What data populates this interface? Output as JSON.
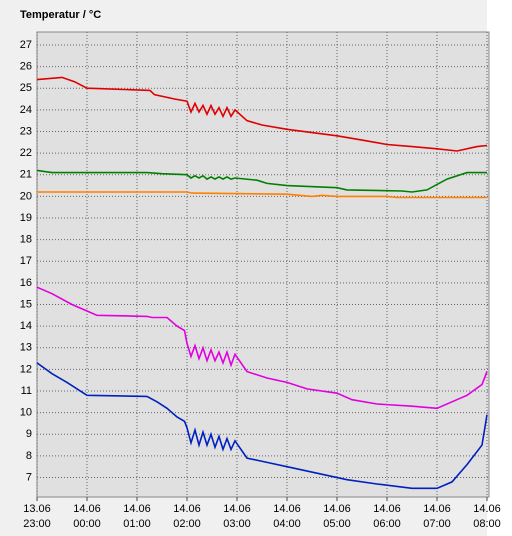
{
  "chart_data": {
    "type": "line",
    "title": "Temperatur / °C",
    "xlim": [
      0,
      9
    ],
    "ylim": [
      6.1,
      27.6
    ],
    "grid": true,
    "yticks": [
      7,
      8,
      9,
      10,
      11,
      12,
      13,
      14,
      15,
      16,
      17,
      18,
      19,
      20,
      21,
      22,
      23,
      24,
      25,
      26,
      27
    ],
    "xticks": [
      {
        "value": 0,
        "label": "13.06\n23:00"
      },
      {
        "value": 1,
        "label": "14.06\n00:00"
      },
      {
        "value": 2,
        "label": "14.06\n01:00"
      },
      {
        "value": 3,
        "label": "14.06\n02:00"
      },
      {
        "value": 4,
        "label": "14.06\n03:00"
      },
      {
        "value": 5,
        "label": "14.06\n04:00"
      },
      {
        "value": 6,
        "label": "14.06\n05:00"
      },
      {
        "value": 7,
        "label": "14.06\n06:00"
      },
      {
        "value": 8,
        "label": "14.06\n07:00"
      },
      {
        "value": 9,
        "label": "14.06\n08:00"
      }
    ],
    "series": [
      {
        "color": "#e00000",
        "x": [
          0,
          0.5,
          0.75,
          1,
          2.26,
          2.35,
          2.75,
          3.0,
          3.08,
          3.16,
          3.24,
          3.32,
          3.4,
          3.48,
          3.56,
          3.64,
          3.72,
          3.8,
          3.88,
          3.96,
          4.2,
          4.5,
          5,
          5.5,
          6,
          6.5,
          7,
          7.5,
          8,
          8.4,
          8.8,
          9
        ],
        "values": [
          25.4,
          25.5,
          25.3,
          25.0,
          24.9,
          24.7,
          24.5,
          24.4,
          23.9,
          24.3,
          23.9,
          24.2,
          23.8,
          24.2,
          23.8,
          24.1,
          23.7,
          24.1,
          23.7,
          24.0,
          23.5,
          23.3,
          23.1,
          22.95,
          22.8,
          22.6,
          22.4,
          22.3,
          22.2,
          22.1,
          22.3,
          22.35
        ]
      },
      {
        "color": "#008000",
        "x": [
          0,
          0.3,
          2.2,
          2.5,
          3.0,
          3.08,
          3.16,
          3.24,
          3.32,
          3.4,
          3.48,
          3.56,
          3.64,
          3.72,
          3.8,
          3.88,
          3.96,
          4.4,
          4.6,
          5,
          6,
          6.2,
          7.3,
          7.5,
          7.8,
          8.2,
          8.6,
          9
        ],
        "values": [
          21.2,
          21.1,
          21.1,
          21.05,
          21.0,
          20.85,
          20.95,
          20.85,
          20.95,
          20.8,
          20.9,
          20.8,
          20.9,
          20.8,
          20.9,
          20.8,
          20.85,
          20.75,
          20.6,
          20.5,
          20.4,
          20.3,
          20.25,
          20.2,
          20.3,
          20.8,
          21.1,
          21.1
        ]
      },
      {
        "color": "#ff8000",
        "x": [
          0,
          3,
          3.1,
          5,
          5.5,
          5.7,
          6,
          7,
          7.2,
          9
        ],
        "values": [
          20.2,
          20.2,
          20.15,
          20.1,
          20.0,
          20.05,
          20.0,
          20.0,
          19.95,
          19.95
        ]
      },
      {
        "color": "#e000e0",
        "x": [
          0,
          0.3,
          0.7,
          1,
          1.2,
          2.2,
          2.3,
          2.6,
          2.8,
          2.95,
          3.0,
          3.08,
          3.16,
          3.24,
          3.32,
          3.4,
          3.48,
          3.56,
          3.64,
          3.72,
          3.8,
          3.88,
          3.96,
          4.2,
          4.6,
          5,
          5.4,
          6,
          6.3,
          6.8,
          7.5,
          8,
          8.3,
          8.6,
          8.9,
          9
        ],
        "values": [
          15.8,
          15.5,
          15.0,
          14.7,
          14.5,
          14.45,
          14.4,
          14.4,
          14.0,
          13.8,
          13.2,
          12.6,
          13.1,
          12.5,
          13.0,
          12.4,
          12.9,
          12.4,
          12.8,
          12.3,
          12.8,
          12.2,
          12.7,
          11.9,
          11.6,
          11.4,
          11.1,
          10.9,
          10.6,
          10.4,
          10.3,
          10.2,
          10.5,
          10.8,
          11.3,
          11.9
        ]
      },
      {
        "color": "#0020c0",
        "x": [
          0,
          0.3,
          0.6,
          1,
          2.2,
          2.4,
          2.6,
          2.8,
          2.95,
          3.0,
          3.08,
          3.16,
          3.24,
          3.32,
          3.4,
          3.48,
          3.56,
          3.64,
          3.72,
          3.8,
          3.88,
          3.96,
          4.2,
          4.6,
          5,
          5.6,
          6.2,
          6.8,
          7.5,
          8,
          8.3,
          8.6,
          8.9,
          9
        ],
        "values": [
          12.3,
          11.8,
          11.4,
          10.8,
          10.75,
          10.5,
          10.2,
          9.8,
          9.6,
          9.3,
          8.6,
          9.2,
          8.5,
          9.1,
          8.5,
          9.0,
          8.4,
          8.9,
          8.3,
          8.8,
          8.3,
          8.7,
          7.9,
          7.7,
          7.5,
          7.2,
          6.9,
          6.7,
          6.5,
          6.5,
          6.8,
          7.6,
          8.5,
          9.9
        ]
      }
    ]
  }
}
